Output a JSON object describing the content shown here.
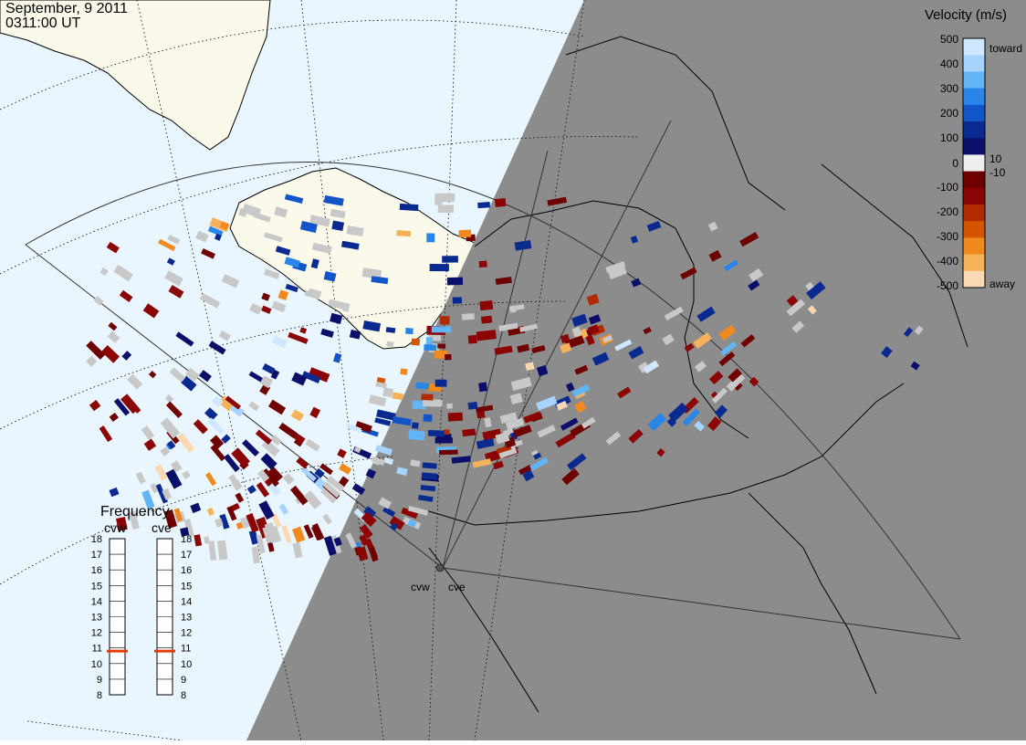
{
  "header": {
    "date": "September, 9 2011",
    "time": "0311:00 UT"
  },
  "colorbar": {
    "title": "Velocity (m/s)",
    "ticks": [
      "500",
      "400",
      "300",
      "200",
      "100",
      "10",
      "0",
      "-10",
      "-100",
      "-200",
      "-300",
      "-400",
      "-500"
    ],
    "toward_label": "toward",
    "away_label": "away",
    "colors": [
      "#cfe8ff",
      "#a7d4ff",
      "#62b5f5",
      "#2a85e8",
      "#1255c8",
      "#0a2a90",
      "#0b0f6a",
      "#eeeeee",
      "#6e0000",
      "#8c0505",
      "#b22a00",
      "#d65400",
      "#f08a1e",
      "#f6b25a",
      "#fbd8b4"
    ]
  },
  "frequency_panel": {
    "title": "Frequency",
    "stations": [
      "cvw",
      "cve"
    ],
    "scale": [
      "18",
      "17",
      "16",
      "15",
      "14",
      "13",
      "12",
      "11",
      "10",
      "9",
      "8"
    ],
    "cvw_freq_mhz": 10.8,
    "cve_freq_mhz": 10.8,
    "marker_color": "#e03c00"
  },
  "radar_sites": [
    {
      "id": "cvw",
      "label": "cvw"
    },
    {
      "id": "cve",
      "label": "cve"
    }
  ],
  "map_colors": {
    "ocean_day": "#eaf6ff",
    "land_day": "#fbf9ea",
    "night": "#8c8c8c",
    "ground_scatter": "#c8c8c8",
    "coast": "#000000"
  }
}
